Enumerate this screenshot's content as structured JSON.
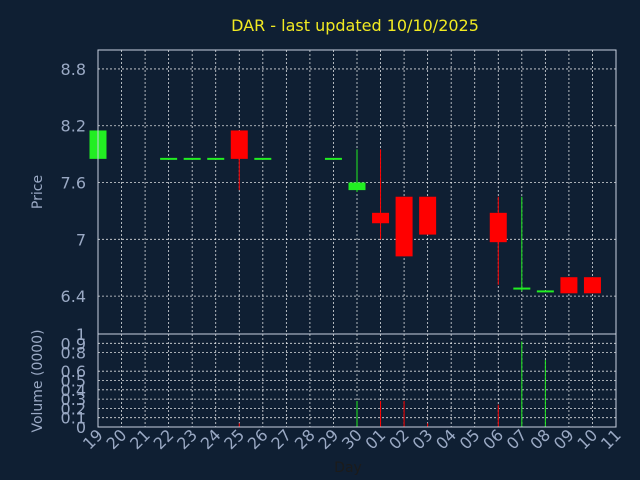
{
  "chart_data": {
    "type": "candlestick",
    "title": "DAR - last updated 10/10/2025",
    "price_panel": {
      "ylabel": "Price",
      "ylim": [
        6.0,
        9.0
      ],
      "yticks": [
        "8.8",
        "8.2",
        "7.6",
        "7",
        "6.4"
      ],
      "ytick_values": [
        8.8,
        8.2,
        7.6,
        7.0,
        6.4
      ]
    },
    "volume_panel": {
      "ylabel": "Volume (0000)",
      "ylim": [
        0,
        1
      ],
      "yticks": [
        "1",
        "0.9",
        "0.8",
        "0.6",
        "0.5",
        "0.4",
        "0.3",
        "0.2",
        "0.1",
        "0"
      ],
      "ytick_values": [
        1,
        0.9,
        0.8,
        0.6,
        0.5,
        0.4,
        0.3,
        0.2,
        0.1,
        0
      ]
    },
    "xlabel": "Day",
    "x_ticks": [
      "19",
      "20",
      "21",
      "22",
      "23",
      "24",
      "25",
      "26",
      "27",
      "28",
      "29",
      "30",
      "01",
      "02",
      "03",
      "04",
      "05",
      "06",
      "07",
      "08",
      "09",
      "10",
      "11"
    ],
    "candles": [
      {
        "day": "19",
        "open": 7.85,
        "close": 8.15,
        "high": 8.15,
        "low": 7.85,
        "volume": 0.0
      },
      {
        "day": "22",
        "open": 7.85,
        "close": 7.85,
        "high": 7.85,
        "low": 7.85,
        "volume": 0.0
      },
      {
        "day": "23",
        "open": 7.85,
        "close": 7.85,
        "high": 7.85,
        "low": 7.85,
        "volume": 0.0
      },
      {
        "day": "24",
        "open": 7.85,
        "close": 7.85,
        "high": 7.85,
        "low": 7.85,
        "volume": 0.0
      },
      {
        "day": "25",
        "open": 8.15,
        "close": 7.85,
        "high": 8.15,
        "low": 7.52,
        "volume": 0.04
      },
      {
        "day": "26",
        "open": 7.85,
        "close": 7.85,
        "high": 7.85,
        "low": 7.85,
        "volume": 0.0
      },
      {
        "day": "29",
        "open": 7.85,
        "close": 7.85,
        "high": 7.85,
        "low": 7.85,
        "volume": 0.0
      },
      {
        "day": "30",
        "open": 7.52,
        "close": 7.6,
        "high": 7.95,
        "low": 7.5,
        "volume": 0.28
      },
      {
        "day": "01",
        "open": 7.28,
        "close": 7.17,
        "high": 7.95,
        "low": 7.0,
        "volume": 0.28
      },
      {
        "day": "02",
        "open": 7.45,
        "close": 6.82,
        "high": 7.45,
        "low": 6.82,
        "volume": 0.28
      },
      {
        "day": "03",
        "open": 7.45,
        "close": 7.05,
        "high": 7.45,
        "low": 7.05,
        "volume": 0.04
      },
      {
        "day": "06",
        "open": 7.28,
        "close": 6.97,
        "high": 7.45,
        "low": 6.52,
        "volume": 0.24
      },
      {
        "day": "07",
        "open": 6.48,
        "close": 6.48,
        "high": 7.45,
        "low": 6.45,
        "volume": 0.92
      },
      {
        "day": "08",
        "open": 6.45,
        "close": 6.45,
        "high": 6.45,
        "low": 6.45,
        "volume": 0.72
      },
      {
        "day": "09",
        "open": 6.6,
        "close": 6.43,
        "high": 6.6,
        "low": 6.43,
        "volume": 0.0
      },
      {
        "day": "10",
        "open": 6.6,
        "close": 6.43,
        "high": 6.6,
        "low": 6.43,
        "volume": 0.0
      }
    ],
    "colors": {
      "up": "#22ee22",
      "down": "#ff0000",
      "flat": "#22ee22",
      "background": "#0f1f33",
      "title": "#f2ea22",
      "text": "#9aa9c4",
      "grid": "#ffffff"
    },
    "grid": true
  }
}
